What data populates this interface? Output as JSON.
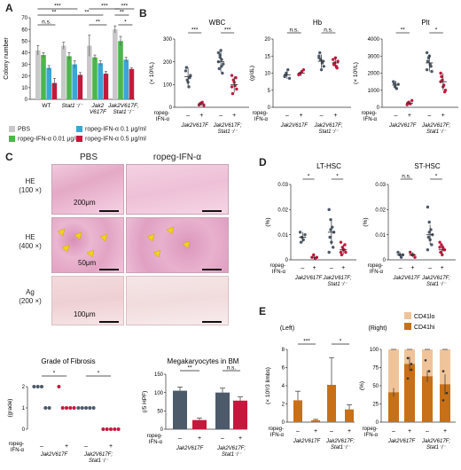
{
  "panels": {
    "A": "A",
    "B": "B",
    "C": "C",
    "D": "D",
    "E": "E"
  },
  "colors": {
    "pbs": "#c8c8c8",
    "low": "#4bb74a",
    "mid": "#3aa6d6",
    "high": "#c4193c",
    "gray_bar": "#4c5a6a",
    "red_bar": "#c4193c",
    "orange": "#c87018",
    "peach": "#f0c49a",
    "stain_he": "#e7b3cf",
    "stain_ag": "#f2dfe0"
  },
  "chart_data": [
    {
      "id": "A",
      "type": "bar",
      "ylabel": "Colony number",
      "ylim": [
        0,
        70
      ],
      "yticks": [
        0,
        10,
        20,
        30,
        40,
        50,
        60,
        70
      ],
      "categories": [
        "WT",
        "Stat1-/-",
        "Jak2 V617F",
        "Jak2V617F; Stat1-/-"
      ],
      "category_lines": [
        [
          "WT"
        ],
        [
          "Stat1⁻/⁻"
        ],
        [
          "Jak2",
          "V617F"
        ],
        [
          "Jak2V617F;",
          "Stat1⁻/⁻"
        ]
      ],
      "series": [
        {
          "name": "PBS",
          "color": "#c8c8c8",
          "values": [
            42,
            46,
            46,
            60
          ],
          "errors": [
            4,
            3,
            9,
            3
          ]
        },
        {
          "name": "ropeg-IFN-α 0.01 μg/ml",
          "color": "#4bb74a",
          "values": [
            38,
            37,
            36,
            50
          ],
          "errors": [
            2,
            3,
            2,
            4
          ]
        },
        {
          "name": "ropeg-IFN-α 0.1 μg/ml",
          "color": "#3aa6d6",
          "values": [
            27,
            30,
            31,
            34
          ],
          "errors": [
            2,
            3,
            2,
            2
          ]
        },
        {
          "name": "ropeg-IFN-α 0.5 μg/ml",
          "color": "#c4193c",
          "values": [
            14,
            21,
            22,
            26
          ],
          "errors": [
            4,
            2,
            2,
            1
          ]
        }
      ],
      "sig_labels": [
        "***",
        "**",
        "n.s.",
        "***",
        "**",
        "**",
        "***",
        "**",
        "*"
      ],
      "legend": [
        "PBS",
        "ropeg-IFN-α 0.01 μg/ml",
        "ropeg-IFN-α 0.1 μg/ml",
        "ropeg-IFN-α 0.5 μg/ml"
      ]
    },
    {
      "id": "B1",
      "type": "scatter",
      "title": "WBC",
      "ylabel": "(× 10³/L)",
      "ylim": [
        0,
        300
      ],
      "yticks": [
        0,
        100,
        200,
        300
      ],
      "groups": [
        {
          "treat": "–",
          "geno": "Jak2V617F",
          "mean": 135,
          "sd": 40,
          "points": [
            160,
            120,
            90,
            140,
            175,
            110,
            130
          ]
        },
        {
          "treat": "+",
          "geno": "Jak2V617F",
          "mean": 15,
          "sd": 8,
          "points": [
            10,
            18,
            22,
            8,
            14
          ]
        },
        {
          "treat": "–",
          "geno": "Jak2V617F; Stat1-/-",
          "mean": 200,
          "sd": 45,
          "points": [
            240,
            230,
            210,
            190,
            170,
            250,
            150,
            200,
            220,
            180
          ]
        },
        {
          "treat": "+",
          "geno": "Jak2V617F; Stat1-/-",
          "mean": 100,
          "sd": 35,
          "points": [
            140,
            120,
            95,
            80,
            60,
            110,
            130,
            90
          ]
        }
      ],
      "sig": [
        "***",
        "***"
      ]
    },
    {
      "id": "B2",
      "type": "scatter",
      "title": "Hb",
      "ylabel": "(g/dL)",
      "ylim": [
        0,
        20
      ],
      "yticks": [
        0,
        5,
        10,
        15,
        20
      ],
      "groups": [
        {
          "treat": "–",
          "geno": "Jak2V617F",
          "mean": 9.5,
          "sd": 1.2,
          "points": [
            9,
            10,
            11,
            8.5,
            9.5
          ]
        },
        {
          "treat": "+",
          "geno": "Jak2V617F",
          "mean": 10,
          "sd": 0.8,
          "points": [
            9.5,
            10,
            10.5,
            11,
            9.8
          ]
        },
        {
          "treat": "–",
          "geno": "Jak2V617F; Stat1-/-",
          "mean": 13.5,
          "sd": 2,
          "points": [
            15,
            14,
            13,
            12,
            16,
            11,
            13.5,
            14.5
          ]
        },
        {
          "treat": "+",
          "geno": "Jak2V617F; Stat1-/-",
          "mean": 13,
          "sd": 1.5,
          "points": [
            14,
            13,
            12,
            13.5,
            12.5,
            14.5,
            11.5
          ]
        }
      ],
      "sig": [
        "n.s.",
        "n.s."
      ]
    },
    {
      "id": "B3",
      "type": "scatter",
      "title": "Plt",
      "ylabel": "(× 10³/L)",
      "ylim": [
        0,
        4000
      ],
      "yticks": [
        0,
        1000,
        2000,
        3000,
        4000
      ],
      "groups": [
        {
          "treat": "–",
          "geno": "Jak2V617F",
          "mean": 1300,
          "sd": 250,
          "points": [
            1500,
            1200,
            1100,
            1350,
            1400
          ]
        },
        {
          "treat": "+",
          "geno": "Jak2V617F",
          "mean": 250,
          "sd": 120,
          "points": [
            150,
            300,
            200,
            400,
            250
          ]
        },
        {
          "treat": "–",
          "geno": "Jak2V617F; Stat1-/-",
          "mean": 2600,
          "sd": 500,
          "points": [
            3200,
            2900,
            2500,
            2100,
            2700,
            3000,
            2400,
            2200
          ]
        },
        {
          "treat": "+",
          "geno": "Jak2V617F; Stat1-/-",
          "mean": 1500,
          "sd": 500,
          "points": [
            2000,
            1600,
            1300,
            1000,
            1800,
            1200,
            900,
            1500
          ]
        }
      ],
      "sig": [
        "**",
        "*"
      ]
    },
    {
      "id": "D1",
      "type": "scatter",
      "title": "LT-HSC",
      "ylabel": "(%)",
      "ylim": [
        0,
        0.03
      ],
      "yticks": [
        0,
        0.01,
        0.02,
        0.03
      ],
      "ytick_labels": [
        "0",
        "0.01",
        "0.02",
        "0.03"
      ],
      "groups": [
        {
          "treat": "–",
          "geno": "Jak2V617F",
          "mean": 0.009,
          "sd": 0.002,
          "points": [
            0.011,
            0.009,
            0.008,
            0.01,
            0.007
          ]
        },
        {
          "treat": "+",
          "geno": "Jak2V617F",
          "mean": 0.001,
          "sd": 0.001,
          "points": [
            0.001,
            0.002,
            0.0005,
            0.001
          ]
        },
        {
          "treat": "–",
          "geno": "Jak2V617F; Stat1-/-",
          "mean": 0.011,
          "sd": 0.005,
          "points": [
            0.02,
            0.016,
            0.013,
            0.011,
            0.009,
            0.007,
            0.005,
            0.003,
            0.012
          ]
        },
        {
          "treat": "+",
          "geno": "Jak2V617F; Stat1-/-",
          "mean": 0.004,
          "sd": 0.002,
          "points": [
            0.007,
            0.005,
            0.004,
            0.003,
            0.002,
            0.004,
            0.006,
            0.003
          ]
        }
      ],
      "sig": [
        "*",
        "*"
      ]
    },
    {
      "id": "D2",
      "type": "scatter",
      "title": "ST-HSC",
      "ylabel": "(%)",
      "ylim": [
        0,
        0.03
      ],
      "yticks": [
        0,
        0.01,
        0.02,
        0.03
      ],
      "ytick_labels": [
        "0",
        "0.01",
        "0.02",
        "0.03"
      ],
      "groups": [
        {
          "treat": "–",
          "geno": "Jak2V617F",
          "mean": 0.002,
          "sd": 0.001,
          "points": [
            0.003,
            0.002,
            0.001,
            0.002
          ]
        },
        {
          "treat": "+",
          "geno": "Jak2V617F",
          "mean": 0.002,
          "sd": 0.001,
          "points": [
            0.003,
            0.002,
            0.002,
            0.001
          ]
        },
        {
          "treat": "–",
          "geno": "Jak2V617F; Stat1-/-",
          "mean": 0.01,
          "sd": 0.004,
          "points": [
            0.021,
            0.015,
            0.012,
            0.01,
            0.009,
            0.008,
            0.006,
            0.004,
            0.011
          ]
        },
        {
          "treat": "+",
          "geno": "Jak2V617F; Stat1-/-",
          "mean": 0.004,
          "sd": 0.002,
          "points": [
            0.007,
            0.006,
            0.005,
            0.004,
            0.003,
            0.002,
            0.004,
            0.005
          ]
        }
      ],
      "sig": [
        "n.s.",
        "*"
      ]
    },
    {
      "id": "C_fibrosis",
      "type": "scatter",
      "title": "Grade of Fibrosis",
      "ylabel": "(grade)",
      "ylim": [
        0,
        2
      ],
      "yticks": [
        0,
        1,
        2
      ],
      "groups": [
        {
          "treat": "–",
          "geno": "Jak2V617F",
          "points": [
            2,
            2,
            2,
            1,
            1
          ],
          "color": "#4c5a6a"
        },
        {
          "treat": "+",
          "geno": "Jak2V617F",
          "points": [
            2,
            1,
            1,
            1,
            1
          ],
          "color": "#c4193c"
        },
        {
          "treat": "–",
          "geno": "Jak2V617F; Stat1-/-",
          "points": [
            1,
            1,
            1,
            1,
            1
          ],
          "color": "#4c5a6a"
        },
        {
          "treat": "+",
          "geno": "Jak2V617F; Stat1-/-",
          "points": [
            0,
            0,
            0,
            0,
            0
          ],
          "color": "#c4193c"
        }
      ],
      "sig": [
        "*",
        "*"
      ]
    },
    {
      "id": "C_mk",
      "type": "bar",
      "title": "Megakaryocytes in BM",
      "ylabel": "(/5 HPF)",
      "ylim": [
        0,
        150
      ],
      "yticks": [
        0,
        50,
        100,
        150
      ],
      "groups": [
        {
          "treat": "–",
          "geno": "Jak2V617F",
          "value": 105,
          "error": 10,
          "color": "#4c5a6a"
        },
        {
          "treat": "+",
          "geno": "Jak2V617F",
          "value": 25,
          "error": 5,
          "color": "#c4193c"
        },
        {
          "treat": "–",
          "geno": "Jak2V617F; Stat1-/-",
          "value": 100,
          "error": 12,
          "color": "#4c5a6a"
        },
        {
          "treat": "+",
          "geno": "Jak2V617F; Stat1-/-",
          "value": 78,
          "error": 10,
          "color": "#c4193c"
        }
      ],
      "sig": [
        "**",
        "n.s."
      ]
    },
    {
      "id": "E_left",
      "type": "bar",
      "title": "(Left)",
      "ylabel": "(× 10³/3 limbs)",
      "ylim": [
        0,
        8
      ],
      "yticks": [
        0,
        2,
        4,
        6,
        8
      ],
      "groups": [
        {
          "treat": "–",
          "geno": "Jak2V617F",
          "value": 2.4,
          "error": 1.0
        },
        {
          "treat": "+",
          "geno": "Jak2V617F",
          "value": 0.2,
          "error": 0.1
        },
        {
          "treat": "–",
          "geno": "Jak2V617F; Stat1-/-",
          "value": 4.1,
          "error": 3.0
        },
        {
          "treat": "+",
          "geno": "Jak2V617F; Stat1-/-",
          "value": 1.4,
          "error": 0.5
        }
      ],
      "sig": [
        "***",
        "*"
      ]
    },
    {
      "id": "E_right",
      "type": "bar",
      "title": "(Right)",
      "ylabel": "(%)",
      "ylim": [
        0,
        100
      ],
      "yticks": [
        0,
        25,
        50,
        75,
        100
      ],
      "legend": [
        "CD41lo",
        "CD41hi"
      ],
      "groups": [
        {
          "treat": "–",
          "geno": "Jak2V617F",
          "hi": 41,
          "hi_err": 6
        },
        {
          "treat": "+",
          "geno": "Jak2V617F",
          "hi": 80,
          "hi_err": 10,
          "points": [
            88,
            72,
            60,
            80
          ]
        },
        {
          "treat": "–",
          "geno": "Jak2V617F; Stat1-/-",
          "hi": 63,
          "hi_err": 8,
          "points": [
            85,
            70
          ]
        },
        {
          "treat": "+",
          "geno": "Jak2V617F; Stat1-/-",
          "hi": 52,
          "hi_err": 14,
          "points": [
            70,
            40,
            30
          ]
        }
      ]
    }
  ],
  "histology": {
    "col_titles": [
      "PBS",
      "ropeg-IFN-α"
    ],
    "row_labels": [
      [
        "HE",
        "(100 ×)"
      ],
      [
        "HE",
        "(400 ×)"
      ],
      [
        "Ag",
        "(200 ×)"
      ]
    ],
    "scale_labels": [
      "200μm",
      "50μm",
      "100μm"
    ]
  },
  "xaxis": {
    "treat_label": [
      "ropeg-",
      "IFN-α"
    ],
    "geno1": "Jak2V617F",
    "geno2_lines": [
      "Jak2V617F;",
      "Stat1⁻/⁻"
    ]
  }
}
